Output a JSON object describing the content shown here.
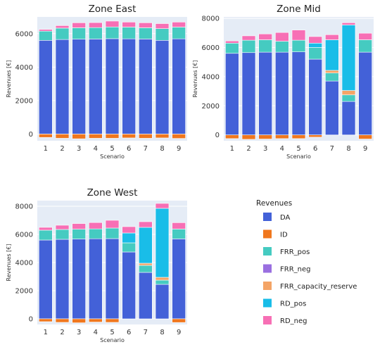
{
  "colors": {
    "plot_bg": "#e5ecf6",
    "grid": "#ffffff"
  },
  "legend": {
    "title": "Revenues",
    "placement": "bottom-right"
  },
  "chart_data": [
    {
      "type": "bar",
      "barmode": "relative",
      "title": "Zone East",
      "xlabel": "Scenario",
      "ylabel": "Revenues [€]",
      "categories": [
        "1",
        "2",
        "3",
        "4",
        "5",
        "6",
        "7",
        "8",
        "9"
      ],
      "ylim": [
        -400,
        7000
      ],
      "yticks": [
        0,
        2000,
        4000,
        6000
      ],
      "grid": true,
      "series": [
        {
          "name": "DA",
          "color": "#4361d8",
          "values": [
            5600,
            5650,
            5670,
            5680,
            5700,
            5690,
            5680,
            5600,
            5690
          ]
        },
        {
          "name": "ID",
          "color": "#f0771d",
          "values": [
            -200,
            -250,
            -280,
            -250,
            -250,
            -230,
            -250,
            -230,
            -260
          ]
        },
        {
          "name": "FRR_pos",
          "color": "#45cbc1",
          "values": [
            550,
            680,
            680,
            680,
            700,
            700,
            670,
            700,
            700
          ]
        },
        {
          "name": "FRR_neg",
          "color": "#9a6fe0",
          "values": [
            0,
            0,
            0,
            0,
            0,
            0,
            0,
            0,
            0
          ]
        },
        {
          "name": "FRR_capacity_reserve",
          "color": "#f4a466",
          "values": [
            0,
            0,
            0,
            0,
            0,
            0,
            0,
            0,
            0
          ]
        },
        {
          "name": "RD_pos",
          "color": "#19bde8",
          "values": [
            0,
            0,
            0,
            0,
            0,
            0,
            0,
            0,
            0
          ]
        },
        {
          "name": "RD_neg",
          "color": "#f76fb5",
          "values": [
            100,
            150,
            300,
            300,
            350,
            300,
            300,
            300,
            300
          ]
        }
      ]
    },
    {
      "type": "bar",
      "barmode": "relative",
      "title": "Zone Mid",
      "xlabel": "Scenario",
      "ylabel": "Revenues [€]",
      "categories": [
        "1",
        "2",
        "3",
        "4",
        "5",
        "6",
        "7",
        "8",
        "9"
      ],
      "ylim": [
        -400,
        8100
      ],
      "yticks": [
        0,
        2000,
        4000,
        6000,
        8000
      ],
      "grid": true,
      "series": [
        {
          "name": "DA",
          "color": "#4361d8",
          "values": [
            5600,
            5650,
            5680,
            5680,
            5700,
            5200,
            3700,
            2300,
            5680
          ]
        },
        {
          "name": "ID",
          "color": "#f0771d",
          "values": [
            -250,
            -300,
            -280,
            -250,
            -250,
            -150,
            0,
            0,
            -280
          ]
        },
        {
          "name": "FRR_pos",
          "color": "#45cbc1",
          "values": [
            700,
            850,
            850,
            750,
            800,
            800,
            550,
            450,
            850
          ]
        },
        {
          "name": "FRR_neg",
          "color": "#9a6fe0",
          "values": [
            0,
            0,
            0,
            0,
            0,
            0,
            0,
            0,
            0
          ]
        },
        {
          "name": "FRR_capacity_reserve",
          "color": "#f4a466",
          "values": [
            0,
            0,
            0,
            0,
            0,
            0,
            180,
            300,
            0
          ]
        },
        {
          "name": "RD_pos",
          "color": "#19bde8",
          "values": [
            0,
            0,
            0,
            0,
            0,
            300,
            2100,
            4500,
            0
          ]
        },
        {
          "name": "RD_neg",
          "color": "#f76fb5",
          "values": [
            150,
            300,
            400,
            600,
            700,
            450,
            350,
            150,
            450
          ]
        }
      ]
    },
    {
      "type": "bar",
      "barmode": "relative",
      "title": "Zone West",
      "xlabel": "Scenario",
      "ylabel": "Revenues [€]",
      "categories": [
        "1",
        "2",
        "3",
        "4",
        "5",
        "6",
        "7",
        "8",
        "9"
      ],
      "ylim": [
        -400,
        8400
      ],
      "yticks": [
        0,
        2000,
        4000,
        6000,
        8000
      ],
      "grid": true,
      "series": [
        {
          "name": "DA",
          "color": "#4361d8",
          "values": [
            5600,
            5650,
            5670,
            5690,
            5700,
            4750,
            3300,
            2450,
            5680
          ]
        },
        {
          "name": "ID",
          "color": "#f0771d",
          "values": [
            -200,
            -250,
            -280,
            -230,
            -250,
            0,
            0,
            0,
            -260
          ]
        },
        {
          "name": "FRR_pos",
          "color": "#45cbc1",
          "values": [
            700,
            700,
            700,
            700,
            750,
            650,
            500,
            300,
            700
          ]
        },
        {
          "name": "FRR_neg",
          "color": "#9a6fe0",
          "values": [
            0,
            0,
            0,
            0,
            0,
            0,
            0,
            0,
            0
          ]
        },
        {
          "name": "FRR_capacity_reserve",
          "color": "#f4a466",
          "values": [
            0,
            0,
            0,
            0,
            0,
            0,
            150,
            200,
            0
          ]
        },
        {
          "name": "RD_pos",
          "color": "#19bde8",
          "values": [
            0,
            0,
            0,
            0,
            0,
            700,
            2550,
            4900,
            0
          ]
        },
        {
          "name": "RD_neg",
          "color": "#f76fb5",
          "values": [
            200,
            300,
            400,
            450,
            550,
            450,
            400,
            350,
            450
          ]
        }
      ]
    }
  ]
}
